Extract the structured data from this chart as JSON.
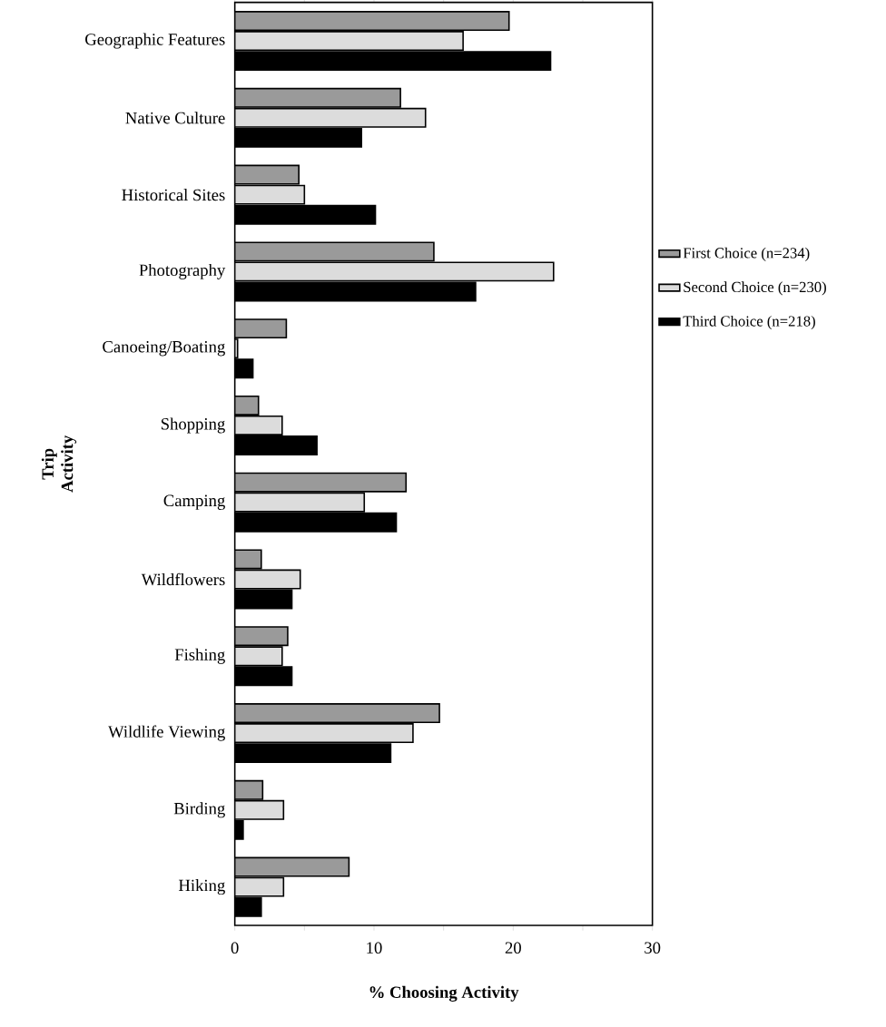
{
  "chart_data": {
    "type": "bar",
    "orientation": "horizontal",
    "categories": [
      "Geographic Features",
      "Native Culture",
      "Historical Sites",
      "Photography",
      "Canoeing/Boating",
      "Shopping",
      "Camping",
      "Wildflowers",
      "Fishing",
      "Wildlife Viewing",
      "Birding",
      "Hiking"
    ],
    "series": [
      {
        "name": "First Choice (n=234)",
        "color": "#9a9a9a",
        "values": [
          19.7,
          11.9,
          4.6,
          14.3,
          3.7,
          1.7,
          12.3,
          1.9,
          3.8,
          14.7,
          2.0,
          8.2
        ]
      },
      {
        "name": "Second Choice (n=230)",
        "color": "#dcdcdc",
        "values": [
          16.4,
          13.7,
          5.0,
          22.9,
          0.2,
          3.4,
          9.3,
          4.7,
          3.4,
          12.8,
          3.5,
          3.5
        ]
      },
      {
        "name": "Third Choice (n=218)",
        "color": "#000000",
        "values": [
          22.7,
          9.1,
          10.1,
          17.3,
          1.3,
          5.9,
          11.6,
          4.1,
          4.1,
          11.2,
          0.6,
          1.9
        ]
      }
    ],
    "xlabel": "% Choosing Activity",
    "ylabel": "Trip Activity",
    "xlim": [
      0,
      30
    ],
    "xticks": [
      0,
      {
        "value": 5,
        "label": null
      },
      10,
      {
        "value": 15,
        "label": null
      },
      20,
      {
        "value": 25,
        "label": null
      },
      30
    ],
    "grid": false,
    "legend": "right"
  }
}
